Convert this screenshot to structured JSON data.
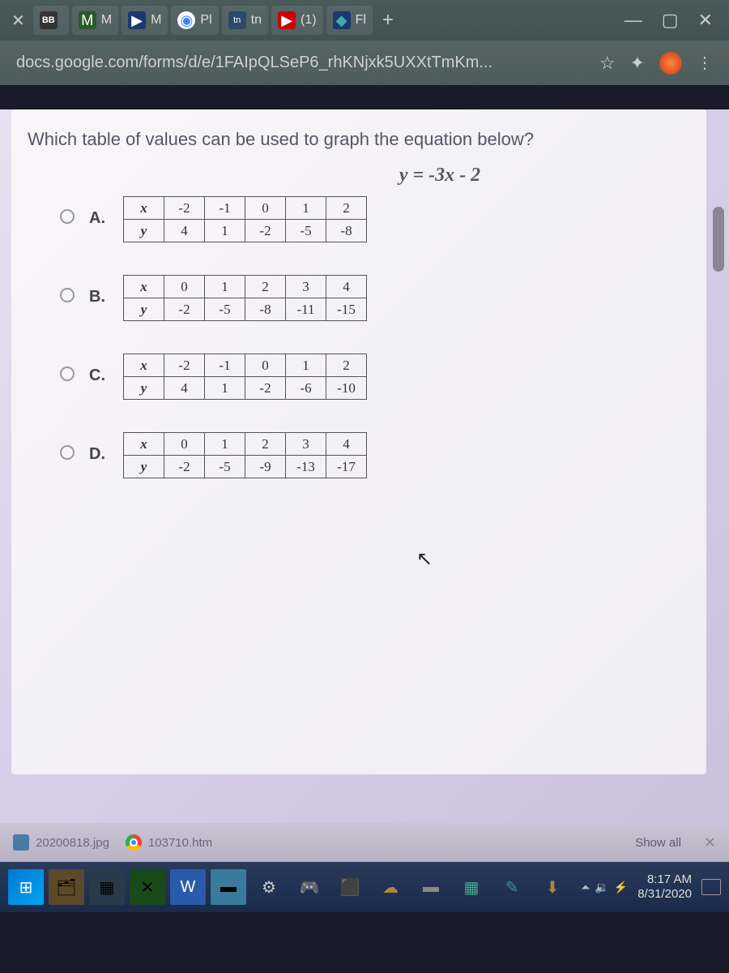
{
  "tabs": [
    {
      "favicon": "BB",
      "label": ""
    },
    {
      "favicon": "M",
      "label": "M"
    },
    {
      "favicon": "▶",
      "label": "M"
    },
    {
      "favicon": "◉",
      "label": "Pl"
    },
    {
      "favicon": "tn",
      "label": "tn"
    },
    {
      "favicon": "▶",
      "label": "(1)"
    },
    {
      "favicon": "◆",
      "label": "Fl"
    }
  ],
  "window": {
    "min": "—",
    "max": "▢",
    "close": "✕"
  },
  "url": "docs.google.com/forms/d/e/1FAIpQLSeP6_rhKNjxk5UXXtTmKm...",
  "addrIcons": {
    "star": "☆",
    "puzzle": "✦",
    "more": "⋮"
  },
  "question": {
    "text": "Which table of values can be used to graph the equation below?",
    "equation": "y = -3x - 2"
  },
  "options": [
    {
      "letter": "A.",
      "x": [
        "x",
        "-2",
        "-1",
        "0",
        "1",
        "2"
      ],
      "y": [
        "y",
        "4",
        "1",
        "-2",
        "-5",
        "-8"
      ]
    },
    {
      "letter": "B.",
      "x": [
        "x",
        "0",
        "1",
        "2",
        "3",
        "4"
      ],
      "y": [
        "y",
        "-2",
        "-5",
        "-8",
        "-11",
        "-15"
      ]
    },
    {
      "letter": "C.",
      "x": [
        "x",
        "-2",
        "-1",
        "0",
        "1",
        "2"
      ],
      "y": [
        "y",
        "4",
        "1",
        "-2",
        "-6",
        "-10"
      ]
    },
    {
      "letter": "D.",
      "x": [
        "x",
        "0",
        "1",
        "2",
        "3",
        "4"
      ],
      "y": [
        "y",
        "-2",
        "-5",
        "-9",
        "-13",
        "-17"
      ]
    }
  ],
  "downloads": {
    "item1": "20200818.jpg",
    "item2": "103710.htm",
    "showAll": "Show all",
    "close": "✕"
  },
  "taskbar": {
    "time": "8:17 AM",
    "date": "8/31/2020",
    "trayIcons": [
      "⏶",
      "🔉",
      "⚡"
    ]
  }
}
